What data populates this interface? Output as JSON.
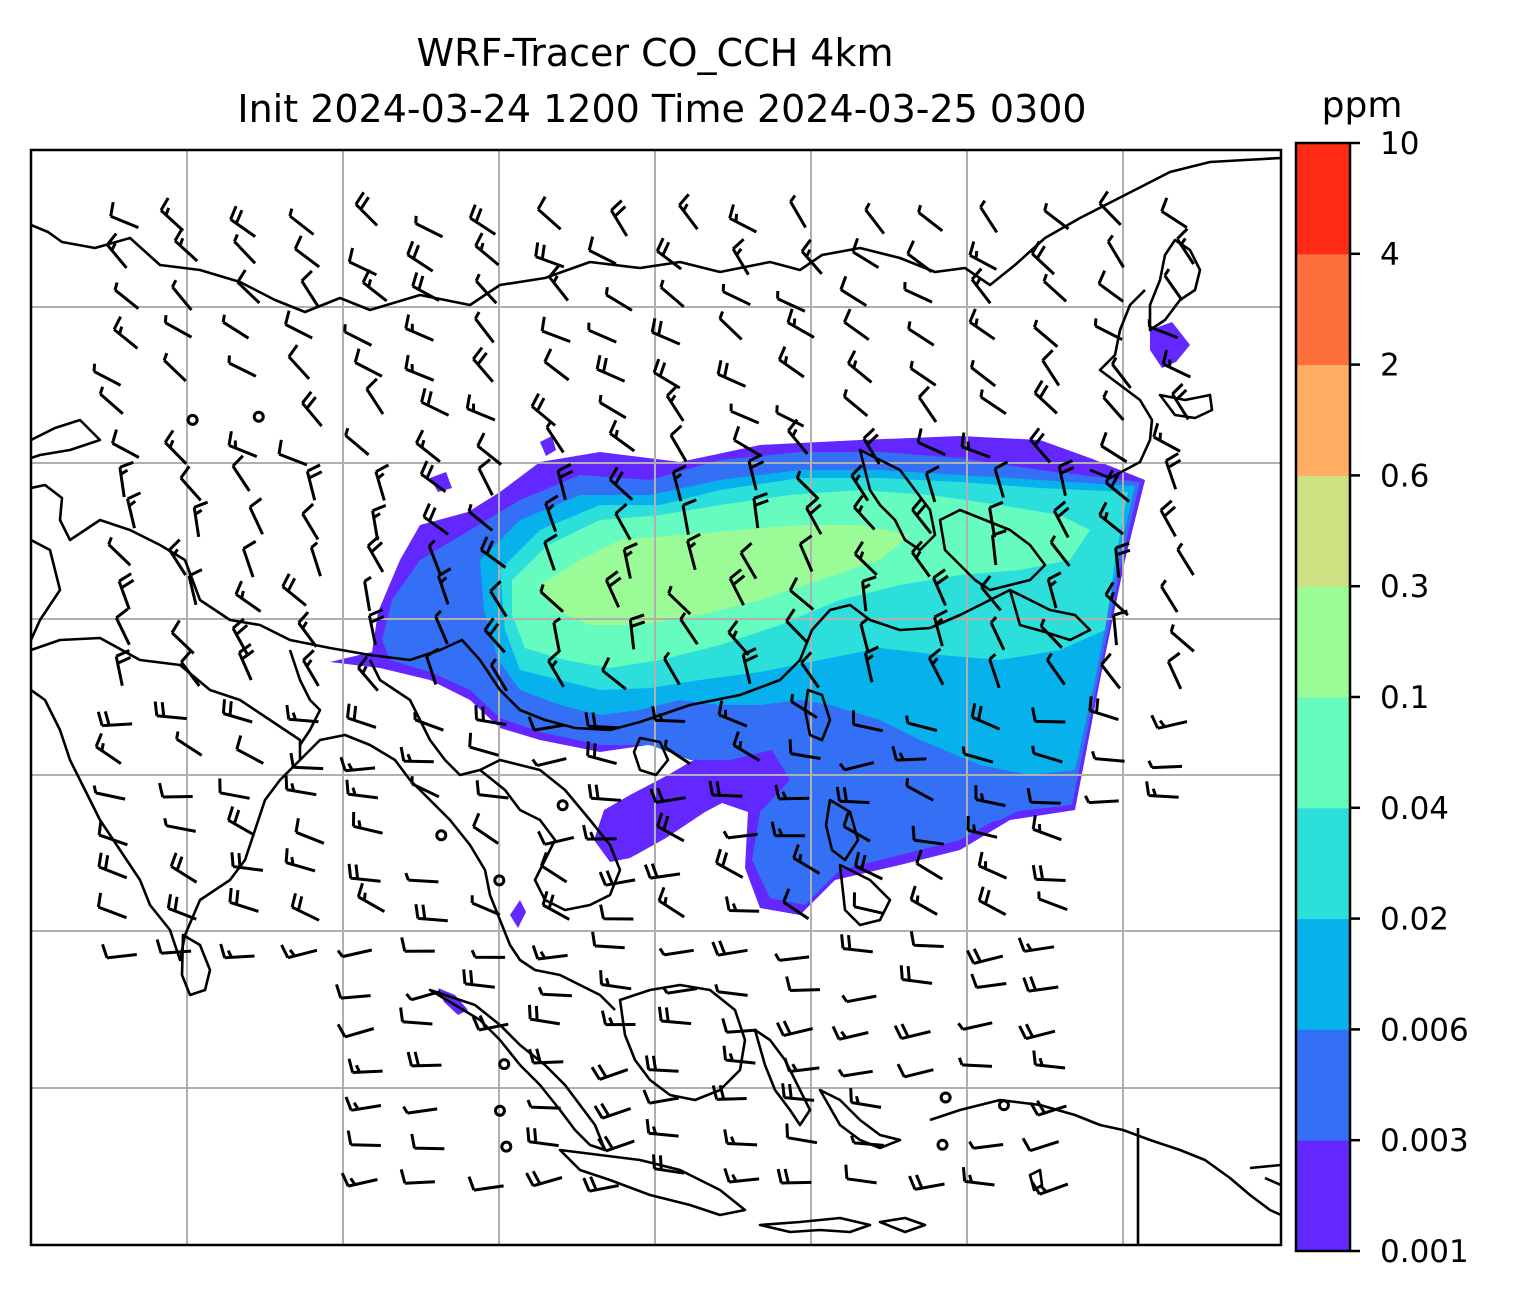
{
  "title": {
    "line1": "WRF-Tracer CO_CCH 4km",
    "line2": "Init 2024-03-24 1200 Time 2024-03-25 0300"
  },
  "colorbar": {
    "unit": "ppm",
    "levels": [
      "0.001",
      "0.003",
      "0.006",
      "0.02",
      "0.04",
      "0.1",
      "0.3",
      "0.6",
      "2",
      "4",
      "10"
    ],
    "colors": [
      "#6228ff",
      "#3370f5",
      "#07b1eb",
      "#2ddfdb",
      "#66fbbf",
      "#9bfb97",
      "#cde183",
      "#fead62",
      "#ff6f3b",
      "#ff2b14"
    ]
  },
  "map": {
    "projection_grid": "lat-lon graticule",
    "coastline_color": "#000000",
    "grid_color": "#b0b0b0",
    "wind_barbs": "black barbs with calm circles"
  }
}
